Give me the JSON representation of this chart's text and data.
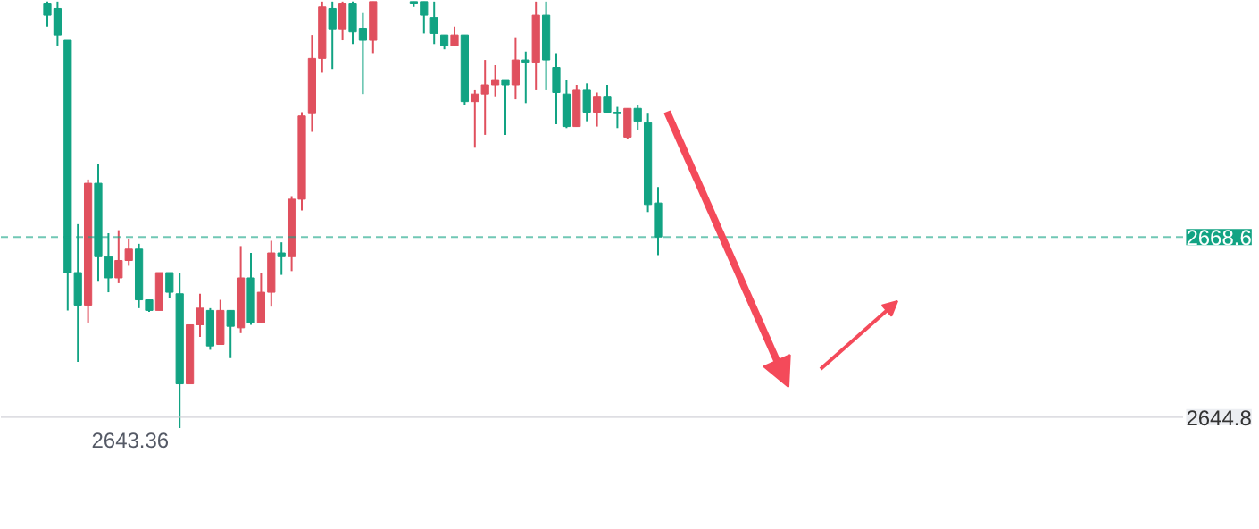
{
  "chart_data": {
    "type": "candlestick",
    "categories": [
      null,
      null,
      null,
      null,
      null,
      null,
      null,
      null,
      null,
      null,
      null,
      null,
      null,
      null,
      null,
      null,
      null,
      null,
      null,
      null,
      null,
      null,
      null,
      null,
      null,
      null,
      null,
      null,
      null,
      null,
      null,
      null,
      null,
      null,
      null,
      null,
      null,
      null,
      null,
      null,
      null,
      null,
      null,
      null,
      null,
      null,
      null,
      null,
      null,
      null,
      null,
      null,
      null,
      null,
      null,
      null,
      null,
      null,
      null,
      null,
      null
    ],
    "ohlc": [
      [
        2699.5,
        2699.7,
        2696.4,
        2697.9
      ],
      [
        2698.8,
        2699.7,
        2693.9,
        2695.3
      ],
      [
        2694.6,
        2694.6,
        2658.9,
        2663.9
      ],
      [
        2663.9,
        2670.3,
        2652.1,
        2659.6
      ],
      [
        2659.6,
        2676.2,
        2657.3,
        2675.7
      ],
      [
        2675.7,
        2678.3,
        2662.7,
        2666.0
      ],
      [
        2666.0,
        2669.1,
        2661.3,
        2663.2
      ],
      [
        2663.2,
        2669.5,
        2662.5,
        2665.5
      ],
      [
        2665.5,
        2668.4,
        2664.8,
        2667.0
      ],
      [
        2667.0,
        2667.7,
        2659.2,
        2660.3
      ],
      [
        2660.3,
        2660.3,
        2658.7,
        2658.9
      ],
      [
        2658.9,
        2663.9,
        2658.9,
        2663.9
      ],
      [
        2663.9,
        2663.9,
        2660.6,
        2661.3
      ],
      [
        2661.1,
        2663.9,
        2643.36,
        2649.2
      ],
      [
        2649.2,
        2657.0,
        2649.2,
        2657.0
      ],
      [
        2657.0,
        2661.1,
        2655.4,
        2659.2
      ],
      [
        2658.9,
        2659.2,
        2653.7,
        2654.2
      ],
      [
        2654.4,
        2660.3,
        2654.4,
        2658.9
      ],
      [
        2658.9,
        2658.9,
        2652.6,
        2656.8
      ],
      [
        2656.6,
        2667.4,
        2655.9,
        2663.2
      ],
      [
        2663.2,
        2666.5,
        2657.0,
        2657.3
      ],
      [
        2657.3,
        2663.9,
        2657.3,
        2661.3
      ],
      [
        2661.3,
        2668.1,
        2659.4,
        2666.5
      ],
      [
        2666.5,
        2667.9,
        2663.6,
        2666.0
      ],
      [
        2666.0,
        2674.0,
        2664.1,
        2673.6
      ],
      [
        2673.6,
        2685.1,
        2672.1,
        2684.6
      ],
      [
        2684.9,
        2695.3,
        2682.5,
        2692.2
      ],
      [
        2692.2,
        2699.7,
        2690.3,
        2699.0
      ],
      [
        2698.8,
        2699.7,
        2690.8,
        2696.0
      ],
      [
        2696.0,
        2699.7,
        2694.6,
        2699.5
      ],
      [
        2699.5,
        2699.7,
        2694.1,
        2695.7
      ],
      [
        2696.2,
        2698.3,
        2687.5,
        2694.6
      ],
      [
        2694.6,
        2699.7,
        2692.9,
        2699.7
      ],
      null,
      null,
      null,
      [
        2699.7,
        2699.7,
        2699.0,
        2699.5
      ],
      [
        2699.7,
        2699.7,
        2695.5,
        2697.9
      ],
      [
        2697.6,
        2699.7,
        2694.1,
        2695.5
      ],
      [
        2695.3,
        2695.3,
        2693.4,
        2693.9
      ],
      [
        2693.9,
        2696.4,
        2693.9,
        2695.3
      ],
      [
        2695.3,
        2695.3,
        2686.1,
        2686.5
      ],
      [
        2686.5,
        2688.0,
        2680.4,
        2687.5
      ],
      [
        2687.5,
        2692.0,
        2682.1,
        2688.7
      ],
      [
        2688.7,
        2691.3,
        2687.2,
        2689.4
      ],
      [
        2689.4,
        2689.4,
        2682.1,
        2688.7
      ],
      [
        2688.7,
        2695.0,
        2686.8,
        2692.0
      ],
      [
        2692.0,
        2693.1,
        2686.3,
        2691.7
      ],
      [
        2691.7,
        2699.7,
        2688.0,
        2697.9
      ],
      [
        2697.9,
        2699.7,
        2688.0,
        2692.0
      ],
      [
        2691.0,
        2692.9,
        2683.5,
        2687.7
      ],
      [
        2687.5,
        2689.4,
        2683.0,
        2683.2
      ],
      [
        2683.2,
        2688.7,
        2683.2,
        2688.0
      ],
      [
        2688.0,
        2688.9,
        2683.9,
        2685.1
      ],
      [
        2685.1,
        2687.7,
        2683.2,
        2687.2
      ],
      [
        2687.2,
        2688.7,
        2685.1,
        2685.1
      ],
      [
        2685.1,
        2685.8,
        2683.0,
        2684.9
      ],
      [
        2681.8,
        2685.6,
        2681.6,
        2685.6
      ],
      [
        2685.6,
        2686.1,
        2682.8,
        2683.9
      ],
      [
        2683.7,
        2684.9,
        2671.9,
        2672.9
      ],
      [
        2673.1,
        2675.2,
        2666.2,
        2668.6
      ]
    ],
    "colors": [
      "#12a383",
      "#12a383",
      "#12a383",
      "#12a383",
      "#e0505e",
      "#12a383",
      "#12a383",
      "#e0505e",
      "#e0505e",
      "#12a383",
      "#12a383",
      "#e0505e",
      "#12a383",
      "#12a383",
      "#e0505e",
      "#e0505e",
      "#12a383",
      "#e0505e",
      "#12a383",
      "#e0505e",
      "#12a383",
      "#e0505e",
      "#e0505e",
      "#12a383",
      "#e0505e",
      "#e0505e",
      "#e0505e",
      "#e0505e",
      "#12a383",
      "#e0505e",
      "#12a383",
      "#12a383",
      "#e0505e",
      null,
      null,
      null,
      "#12a383",
      "#12a383",
      "#12a383",
      "#12a383",
      "#e0505e",
      "#12a383",
      "#e0505e",
      "#e0505e",
      "#e0505e",
      "#12a383",
      "#e0505e",
      "#12a383",
      "#e0505e",
      "#12a383",
      "#12a383",
      "#12a383",
      "#e0505e",
      "#12a383",
      "#e0505e",
      "#12a383",
      "#12a383",
      "#e0505e",
      "#12a383",
      "#12a383",
      "#12a383"
    ],
    "ylim": [
      2629.9,
      2699.8
    ],
    "tick_labels": false,
    "grid": false,
    "ref_lines": [
      {
        "axis": "y",
        "value": 2668.6,
        "label": "2668.6",
        "color": "#12a383",
        "line_style": "dashed"
      },
      {
        "axis": "y",
        "value": 2644.8,
        "label": "2644.8",
        "color": "#c8c8d0",
        "line_style": "solid"
      }
    ],
    "annotations": [
      "2643.36"
    ]
  }
}
